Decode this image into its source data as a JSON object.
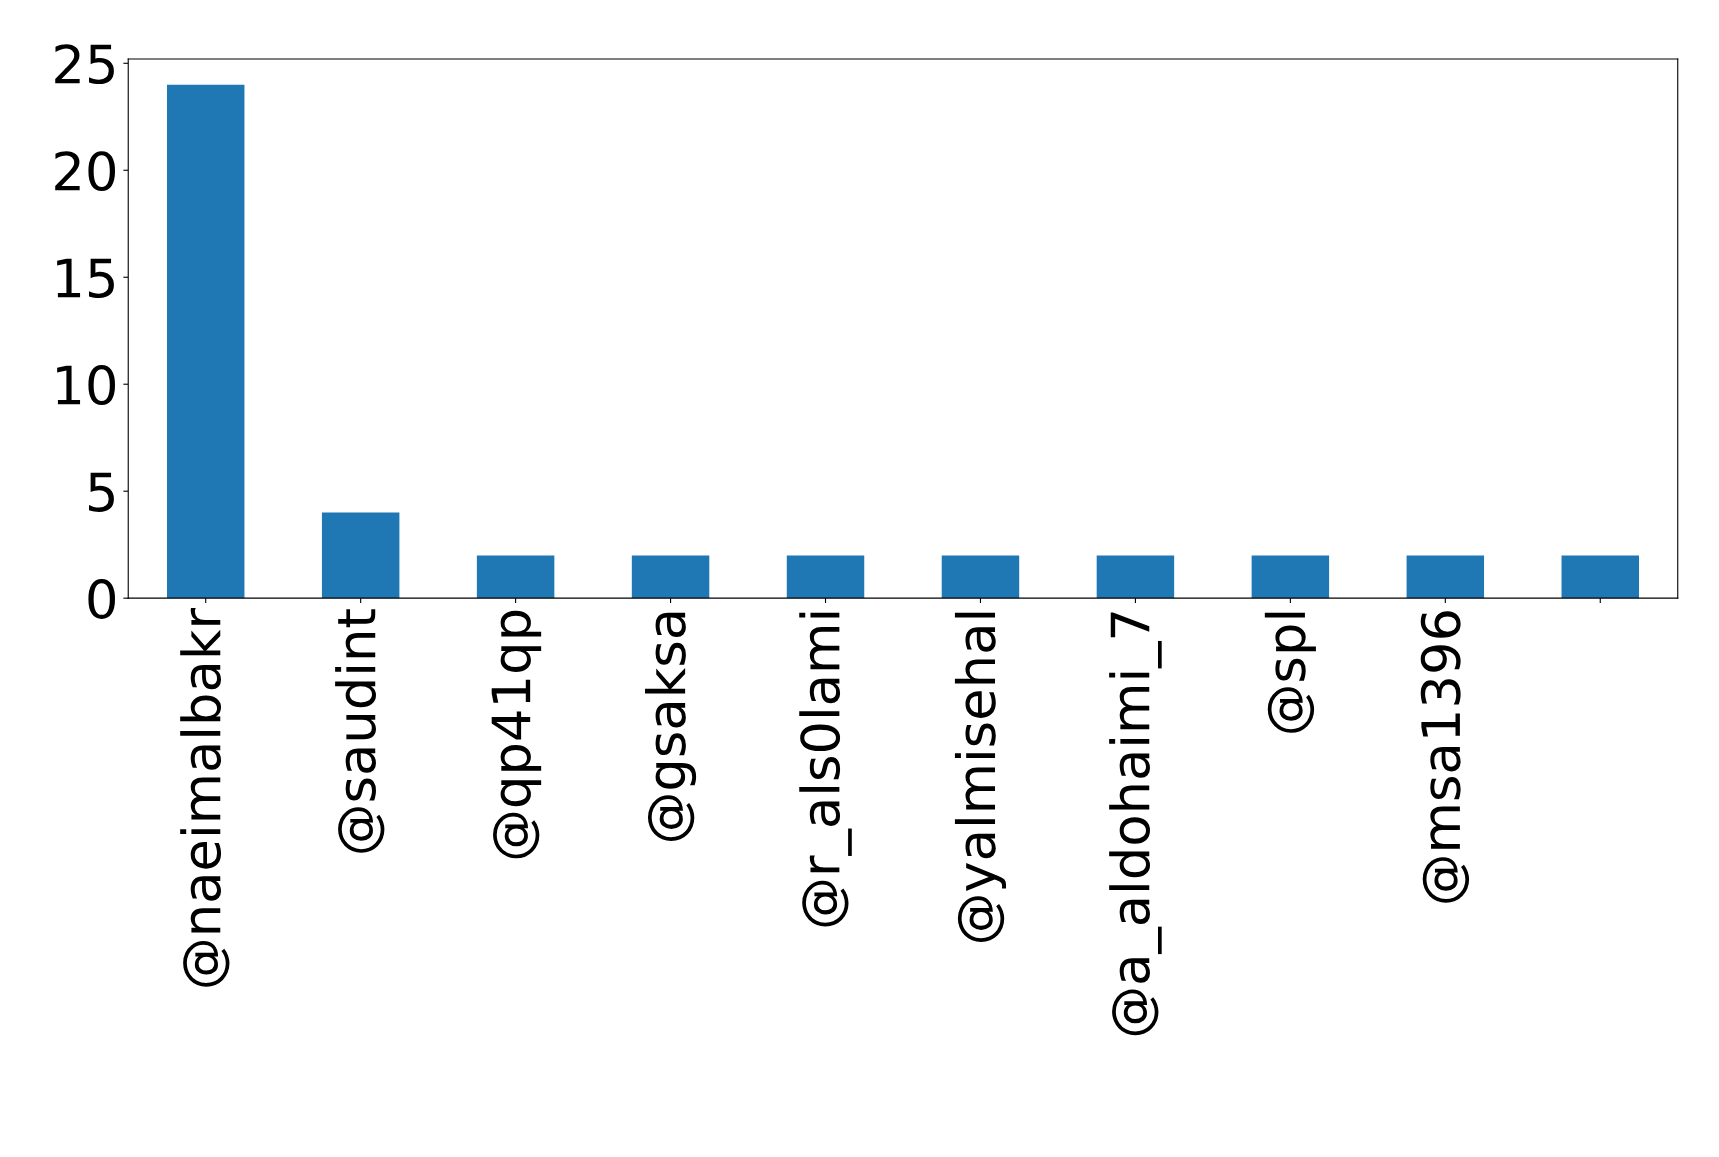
{
  "chart_data": {
    "type": "bar",
    "categories": [
      "@naeimalbakr",
      "@saudint",
      "@qp41qp",
      "@gsaksa",
      "@r_als0lami",
      "@yalmisehal",
      "@a_aldohaimi_7",
      "@spl",
      "@msa1396",
      null
    ],
    "values": [
      24,
      4,
      2,
      2,
      2,
      2,
      2,
      2,
      2,
      2
    ],
    "color": "#1f77b4",
    "ylim": [
      0,
      25.2
    ],
    "yticks": [
      0,
      5,
      10,
      15,
      20,
      25
    ],
    "grid": false,
    "legend": false
  }
}
